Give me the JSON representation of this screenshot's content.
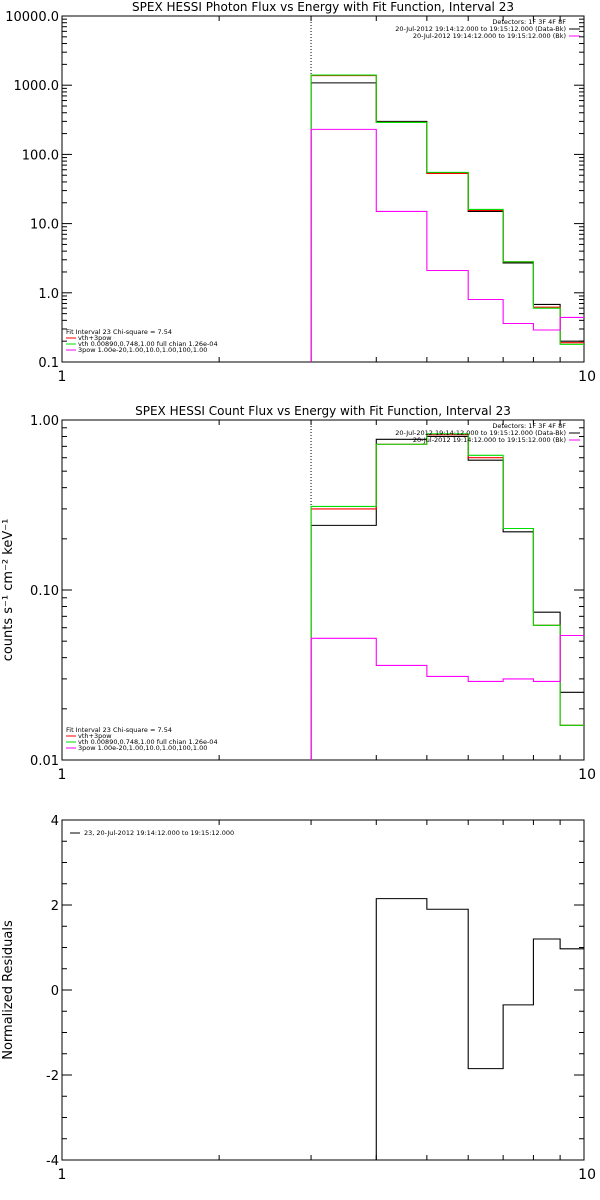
{
  "chart_data": [
    {
      "type": "line",
      "title": "SPEX HESSI Photon Flux vs Energy with Fit Function, Interval 23",
      "xscale": "log",
      "yscale": "log",
      "xlim": [
        1,
        10
      ],
      "ylim": [
        0.1,
        10000
      ],
      "xticks": [
        "1",
        "10"
      ],
      "yticks": [
        "0.1",
        "1.0",
        "10.0",
        "100.0",
        "1000.0",
        "10000.0"
      ],
      "ylabel": "",
      "vline_x": 3,
      "bin_edges": [
        3,
        4,
        5,
        6,
        7,
        8,
        9,
        10
      ],
      "series": [
        {
          "name": "",
          "color": "#000000",
          "values": [
            1080,
            300,
            54,
            15,
            2.7,
            0.68,
            0.2
          ]
        },
        {
          "name": "vth+3pow",
          "color": "#ff0000",
          "values": [
            1380,
            290,
            53,
            15.5,
            2.8,
            0.62,
            0.19
          ]
        },
        {
          "name": "vth 0.00890,0.748,1.00  full chian 1.26e-04",
          "color": "#00dd00",
          "values": [
            1400,
            290,
            55,
            16,
            2.8,
            0.6,
            0.18
          ]
        },
        {
          "name": "3pow 1.00e-20,1.00,10.0,1.00,100,1.00",
          "color": "#ff00ff",
          "values": [
            230,
            15,
            2.1,
            0.8,
            0.36,
            0.29,
            0.44
          ]
        }
      ],
      "legend_top": [
        "Detectors: 1F 3F 4F 8F",
        "20-Jul-2012 19:14:12.000 to 19:15:12.000 (Data-Bk)",
        "20-Jul-2012 19:14:12.000 to 19:15:12.000 (Bk)"
      ],
      "legend_top_colors": [
        "",
        "#000000",
        "#ff00ff"
      ],
      "legend_bottom_header": "Fit Interval 23   Chi-square = 7.54",
      "legend_bottom": [
        "vth+3pow",
        "vth 0.00890,0.748,1.00  full chian 1.26e-04",
        "3pow 1.00e-20,1.00,10.0,1.00,100,1.00"
      ],
      "legend_bottom_colors": [
        "#ff0000",
        "#00dd00",
        "#ff00ff"
      ]
    },
    {
      "type": "line",
      "title": "SPEX HESSI Count Flux vs Energy with Fit Function, Interval 23",
      "xscale": "log",
      "yscale": "log",
      "xlim": [
        1,
        10
      ],
      "ylim": [
        0.01,
        1.0
      ],
      "xticks": [
        "1",
        "10"
      ],
      "yticks": [
        "0.01",
        "0.10",
        "1.00"
      ],
      "ylabel": "counts s⁻¹ cm⁻² keV⁻¹",
      "vline_x": 3,
      "bin_edges": [
        3,
        4,
        5,
        6,
        7,
        8,
        9,
        10
      ],
      "series": [
        {
          "name": "",
          "color": "#000000",
          "values": [
            0.24,
            0.77,
            0.8,
            0.58,
            0.22,
            0.074,
            0.025
          ]
        },
        {
          "name": "vth+3pow",
          "color": "#ff0000",
          "values": [
            0.3,
            0.72,
            0.82,
            0.6,
            0.23,
            0.062,
            0.016
          ]
        },
        {
          "name": "vth 0.00890,0.748,1.00  full chian 1.26e-04",
          "color": "#00dd00",
          "values": [
            0.31,
            0.72,
            0.83,
            0.62,
            0.23,
            0.062,
            0.016
          ]
        },
        {
          "name": "3pow 1.00e-20,1.00,10.0,1.00,100,1.00",
          "color": "#ff00ff",
          "values": [
            0.052,
            0.036,
            0.031,
            0.029,
            0.03,
            0.029,
            0.054
          ]
        }
      ],
      "legend_top": [
        "Detectors: 1F 3F 4F 8F",
        "20-Jul-2012 19:14:12.000 to 19:15:12.000 (Data-Bk)",
        "20-Jul-2012 19:14:12.000 to 19:15:12.000 (Bk)"
      ],
      "legend_top_colors": [
        "",
        "#000000",
        "#ff00ff"
      ],
      "legend_bottom_header": "Fit Interval 23   Chi-square = 7.54",
      "legend_bottom": [
        "vth+3pow",
        "vth 0.00890,0.748,1.00  full chian 1.26e-04",
        "3pow 1.00e-20,1.00,10.0,1.00,100,1.00"
      ],
      "legend_bottom_colors": [
        "#ff0000",
        "#00dd00",
        "#ff00ff"
      ]
    },
    {
      "type": "line",
      "title": "",
      "xscale": "log",
      "yscale": "linear",
      "xlim": [
        1,
        10
      ],
      "ylim": [
        -4,
        4
      ],
      "xticks": [
        "1",
        "10"
      ],
      "yticks": [
        "-4",
        "-2",
        "0",
        "2",
        "4"
      ],
      "ylabel": "Normalized Residuals",
      "bin_edges": [
        4,
        5,
        6,
        7,
        8,
        9,
        10
      ],
      "series": [
        {
          "name": "23, 20-Jul-2012 19:14:12.000 to 19:15:12.000",
          "color": "#000000",
          "values": [
            2.15,
            1.9,
            -1.85,
            -0.35,
            1.2,
            0.97
          ]
        }
      ],
      "drop_from": -4
    }
  ]
}
